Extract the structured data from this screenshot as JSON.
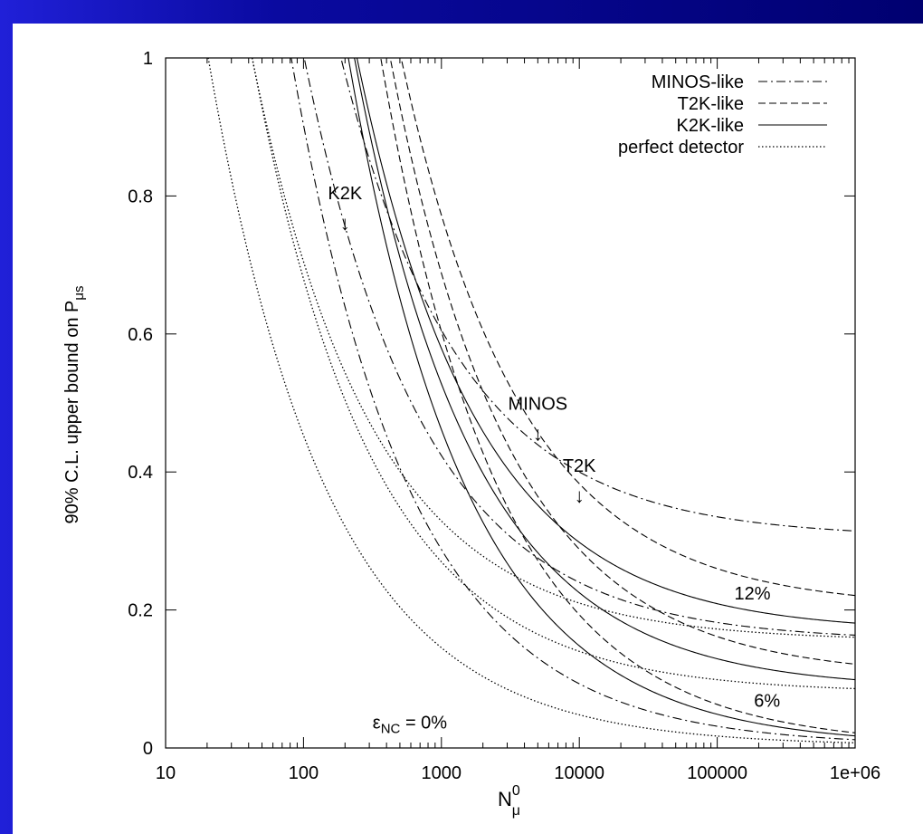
{
  "chart_data": {
    "type": "line",
    "xscale": "log",
    "xlim": [
      10,
      1000000
    ],
    "ylim": [
      0,
      1
    ],
    "x_ticks": [
      "10",
      "100",
      "1000",
      "10000",
      "100000",
      "1e+06"
    ],
    "y_ticks": [
      "0",
      "0.2",
      "0.4",
      "0.6",
      "0.8",
      "1"
    ],
    "xlabel": {
      "base": "N",
      "sub": "μ",
      "sup": "0"
    },
    "ylabel": {
      "base": "90% C.L. upper bound on P",
      "sub": "μs"
    },
    "legend_position": "top-right",
    "legend": [
      {
        "label": "MINOS-like",
        "style": "dashdot"
      },
      {
        "label": "T2K-like",
        "style": "dashed"
      },
      {
        "label": "K2K-like",
        "style": "solid"
      },
      {
        "label": "perfect detector",
        "style": "dotted"
      }
    ],
    "series": [
      {
        "style": "dotted",
        "a": 4.5,
        "c": 0.003
      },
      {
        "style": "dotted",
        "a": 6.0,
        "c": 0.08
      },
      {
        "style": "dotted",
        "a": 5.5,
        "c": 0.155
      },
      {
        "style": "dashdot",
        "a": 9.0,
        "c": 0.003
      },
      {
        "style": "dashdot",
        "a": 8.5,
        "c": 0.155
      },
      {
        "style": "dashdot",
        "a": 9.5,
        "c": 0.305
      },
      {
        "style": "solid",
        "a": 14.5,
        "c": 0.003
      },
      {
        "style": "solid",
        "a": 14.0,
        "c": 0.085
      },
      {
        "style": "solid",
        "a": 13.0,
        "c": 0.168
      },
      {
        "style": "dashed",
        "a": 19.0,
        "c": 0.003
      },
      {
        "style": "dashed",
        "a": 18.5,
        "c": 0.103
      },
      {
        "style": "dashed",
        "a": 18.0,
        "c": 0.203
      }
    ],
    "annotations": [
      {
        "text": "K2K",
        "x": 200,
        "y": 0.795,
        "arrow": true
      },
      {
        "text": "MINOS",
        "x": 5000,
        "y": 0.49,
        "arrow": true
      },
      {
        "text": "T2K",
        "x": 10000,
        "y": 0.4,
        "arrow": true
      },
      {
        "text": "12%",
        "x": 180000,
        "y": 0.215,
        "arrow": false
      },
      {
        "text": "6%",
        "x": 230000,
        "y": 0.06,
        "arrow": false
      }
    ],
    "epsilon_label": {
      "base": "ε",
      "sub": "NC",
      "rest": " = 0%",
      "x": 1100,
      "y": 0.028
    }
  }
}
